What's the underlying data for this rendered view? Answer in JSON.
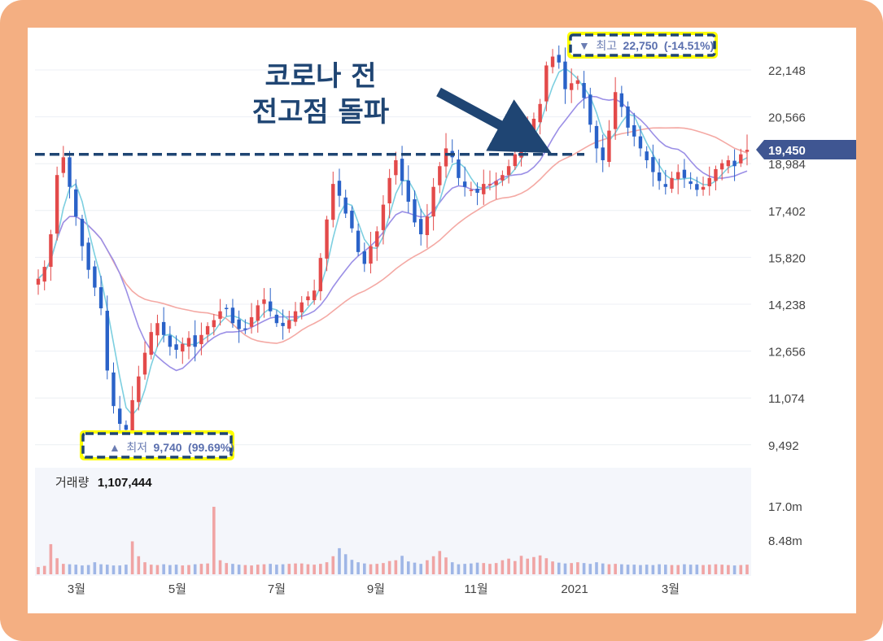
{
  "chart_data": {
    "type": "candlestick",
    "price_axis": {
      "ticks": [
        "22,148",
        "20,566",
        "18,984",
        "17,402",
        "15,820",
        "14,238",
        "12,656",
        "11,074",
        "9,492"
      ],
      "ylim": [
        8900,
        23300
      ]
    },
    "volume_axis": {
      "ticks": [
        "17.0m",
        "8.48m"
      ],
      "ylim": [
        0,
        22
      ]
    },
    "x_ticks": [
      "3월",
      "5월",
      "7월",
      "9월",
      "11월",
      "2021",
      "3월"
    ],
    "current_price": "19,450",
    "high": {
      "marker": "▼",
      "label": "최고",
      "value": "22,750",
      "pct": "(-14.51%)"
    },
    "low": {
      "marker": "▲",
      "label": "최저",
      "value": "9,740",
      "pct": "(99.69%)"
    },
    "volume_label": "거래량",
    "volume_value": "1,107,444",
    "annotation": [
      "코로나 전",
      "전고점 돌파"
    ],
    "resistance_level": 19300,
    "close_series": [
      15100,
      15500,
      16600,
      18600,
      19200,
      18200,
      17200,
      16200,
      15400,
      14800,
      14100,
      12000,
      10800,
      10200,
      10000,
      11000,
      11800,
      12600,
      13300,
      13600,
      13200,
      12800,
      12700,
      12900,
      13100,
      12800,
      13200,
      13500,
      13700,
      14000,
      14100,
      13600,
      13400,
      13400,
      13800,
      14200,
      14400,
      14000,
      13600,
      13500,
      13700,
      14000,
      14300,
      14500,
      14700,
      15800,
      17100,
      18300,
      17900,
      17300,
      16800,
      16000,
      15600,
      16200,
      16700,
      17600,
      18500,
      19100,
      18400,
      17700,
      17000,
      16600,
      17200,
      18200,
      18900,
      19500,
      19200,
      18500,
      18200,
      18100,
      18000,
      18300,
      18300,
      18400,
      18600,
      18900,
      19300,
      19700,
      20100,
      20500,
      21000,
      22300,
      22600,
      22400,
      21500,
      21700,
      21800,
      21200,
      20300,
      19500,
      19100,
      20100,
      21400,
      20900,
      20200,
      19900,
      19500,
      19100,
      18700,
      18400,
      18200,
      18500,
      18700,
      18500,
      18300,
      18100,
      18200,
      18500,
      18800,
      19000,
      19100,
      18900,
      19300,
      19450
    ],
    "volume_series": [
      1.8,
      2.1,
      7.5,
      4.0,
      2.6,
      2.5,
      2.4,
      2.2,
      2.3,
      3.0,
      2.5,
      2.4,
      2.2,
      2.2,
      2.4,
      8.2,
      4.5,
      3.0,
      2.4,
      2.3,
      2.5,
      2.3,
      2.4,
      2.2,
      2.3,
      2.5,
      2.6,
      2.7,
      16.8,
      3.5,
      2.8,
      2.6,
      2.4,
      2.3,
      2.2,
      2.4,
      2.5,
      2.6,
      2.4,
      2.5,
      2.6,
      2.7,
      2.7,
      2.5,
      2.4,
      2.6,
      3.0,
      4.5,
      6.5,
      5.0,
      3.6,
      3.0,
      2.7,
      2.5,
      2.6,
      2.8,
      3.3,
      3.5,
      4.6,
      3.2,
      2.9,
      2.6,
      3.5,
      4.5,
      5.8,
      4.2,
      3.0,
      2.5,
      2.6,
      2.7,
      2.9,
      2.8,
      2.6,
      2.8,
      3.5,
      3.9,
      3.3,
      4.6,
      3.9,
      4.3,
      4.7,
      4.0,
      3.2,
      2.9,
      2.7,
      2.8,
      3.0,
      2.8,
      2.6,
      3.0,
      2.7,
      2.5,
      2.6,
      2.5,
      2.4,
      2.4,
      2.3,
      2.4,
      2.3,
      2.5,
      2.4,
      2.3,
      2.3,
      2.5,
      2.4,
      2.4,
      2.3,
      2.4,
      2.5,
      2.4,
      2.3,
      2.2,
      2.3,
      2.4
    ]
  },
  "colors": {
    "up": "#e34a4a",
    "down": "#2a62c8",
    "ma5": "#7dcfe0",
    "ma20": "#9b8fe6",
    "ma60": "#f4a9a4",
    "tag": "#3f5692",
    "dash": "#1f4573",
    "highlight": "#ffff00",
    "frame": "#f4af82"
  }
}
